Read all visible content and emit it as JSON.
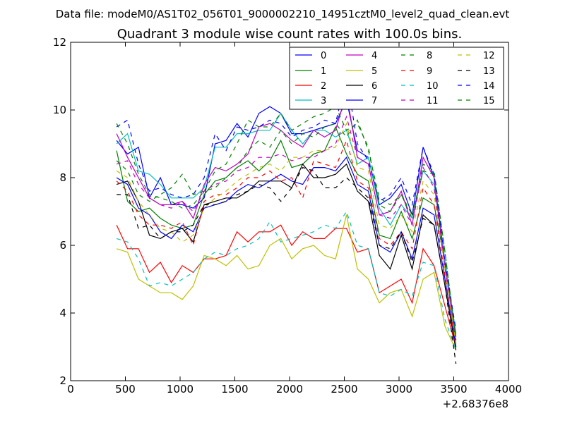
{
  "header": {
    "data_file": "Data file: modeM0/AS1T02_056T01_9000002210_14951cztM0_level2_quad_clean.evt"
  },
  "chart_data": {
    "type": "line",
    "title": "Quadrant 3 module wise count rates with 100.0s bins.",
    "xlabel": "",
    "ylabel": "",
    "x_offset_label": "+2.68376e8",
    "xlim": [
      0,
      4000
    ],
    "ylim": [
      2,
      12
    ],
    "x_ticks": [
      0,
      500,
      1000,
      1500,
      2000,
      2500,
      3000,
      3500,
      4000
    ],
    "y_ticks": [
      2,
      4,
      6,
      8,
      10,
      12
    ],
    "grid": false,
    "legend_placement": "top-right",
    "x": [
      420,
      520,
      620,
      720,
      820,
      920,
      1020,
      1120,
      1220,
      1320,
      1420,
      1520,
      1620,
      1720,
      1820,
      1920,
      2020,
      2120,
      2220,
      2320,
      2420,
      2520,
      2620,
      2720,
      2820,
      2920,
      3020,
      3120,
      3220,
      3320,
      3420,
      3520
    ],
    "series": [
      {
        "name": "0",
        "color": "#0000ff",
        "dash": false,
        "values": [
          9.1,
          8.7,
          8.9,
          7.4,
          8.0,
          7.2,
          7.2,
          7.1,
          7.4,
          9.0,
          9.1,
          9.6,
          9.2,
          9.9,
          10.1,
          9.9,
          9.3,
          9.3,
          9.4,
          9.5,
          9.6,
          10.3,
          8.8,
          8.6,
          7.2,
          7.4,
          7.8,
          6.9,
          8.9,
          8.0,
          5.5,
          3.4
        ]
      },
      {
        "name": "1",
        "color": "#008000",
        "dash": false,
        "values": [
          8.8,
          7.3,
          7.0,
          7.1,
          6.8,
          6.6,
          6.5,
          6.6,
          7.5,
          7.9,
          8.0,
          8.3,
          8.5,
          8.2,
          8.5,
          9.1,
          8.3,
          8.4,
          8.7,
          8.8,
          9.5,
          8.7,
          8.1,
          7.9,
          6.3,
          6.2,
          7.0,
          6.2,
          7.4,
          7.2,
          5.5,
          3.1
        ]
      },
      {
        "name": "2",
        "color": "#ff0000",
        "dash": false,
        "values": [
          6.6,
          5.9,
          5.9,
          5.2,
          5.5,
          4.9,
          5.4,
          5.2,
          5.6,
          5.6,
          5.7,
          6.4,
          6.1,
          6.4,
          6.4,
          6.6,
          6.0,
          6.4,
          6.2,
          6.2,
          6.5,
          6.5,
          5.8,
          5.9,
          4.6,
          4.8,
          5.0,
          4.3,
          5.9,
          5.4,
          4.2,
          3.0
        ]
      },
      {
        "name": "3",
        "color": "#00bfbf",
        "dash": false,
        "values": [
          9.0,
          9.3,
          8.2,
          8.1,
          7.8,
          7.4,
          7.4,
          7.4,
          7.7,
          8.9,
          8.9,
          9.3,
          9.3,
          9.4,
          9.4,
          9.9,
          9.4,
          9.0,
          9.4,
          9.4,
          9.2,
          9.4,
          8.4,
          8.6,
          7.1,
          6.6,
          7.2,
          6.8,
          8.2,
          7.8,
          5.5,
          3.4
        ]
      },
      {
        "name": "4",
        "color": "#bf00bf",
        "dash": false,
        "values": [
          9.3,
          8.6,
          8.0,
          7.4,
          7.2,
          7.2,
          7.3,
          6.8,
          7.8,
          8.3,
          8.2,
          8.4,
          8.7,
          9.5,
          9.6,
          9.4,
          9.1,
          8.9,
          9.4,
          9.2,
          9.4,
          10.5,
          8.6,
          8.4,
          6.9,
          7.0,
          7.6,
          6.6,
          8.6,
          8.0,
          5.3,
          3.3
        ]
      },
      {
        "name": "5",
        "color": "#bfbf00",
        "dash": false,
        "values": [
          5.9,
          5.8,
          5.0,
          4.8,
          4.6,
          4.6,
          4.4,
          4.8,
          5.7,
          5.6,
          5.4,
          5.7,
          5.3,
          5.4,
          6.0,
          6.2,
          5.6,
          5.9,
          6.0,
          5.7,
          5.6,
          6.9,
          5.3,
          5.0,
          4.3,
          4.6,
          4.7,
          3.9,
          5.0,
          5.2,
          3.6,
          2.9
        ]
      },
      {
        "name": "6",
        "color": "#000000",
        "dash": false,
        "values": [
          7.8,
          7.9,
          7.3,
          6.3,
          6.2,
          6.4,
          6.5,
          6.1,
          7.2,
          7.3,
          7.4,
          7.4,
          7.6,
          7.9,
          7.9,
          7.9,
          7.7,
          8.4,
          8.0,
          8.0,
          8.1,
          8.4,
          7.6,
          7.3,
          5.7,
          5.3,
          6.3,
          5.3,
          6.9,
          6.6,
          4.8,
          2.9
        ]
      },
      {
        "name": "7",
        "color": "#0000ff",
        "dash": false,
        "values": [
          8.0,
          7.8,
          7.1,
          6.9,
          6.4,
          6.2,
          6.6,
          6.4,
          7.1,
          7.2,
          7.3,
          7.6,
          7.8,
          7.7,
          7.9,
          8.1,
          7.9,
          7.8,
          8.3,
          8.3,
          8.2,
          8.6,
          7.8,
          7.6,
          6.0,
          5.8,
          6.4,
          5.6,
          7.1,
          6.9,
          5.0,
          3.0
        ]
      },
      {
        "name": "8",
        "color": "#008000",
        "dash": true,
        "values": [
          8.5,
          8.2,
          7.5,
          7.3,
          7.5,
          7.7,
          8.1,
          7.5,
          7.6,
          7.7,
          8.0,
          8.3,
          8.8,
          9.1,
          8.9,
          9.4,
          9.0,
          9.3,
          9.2,
          9.5,
          9.6,
          9.2,
          9.7,
          8.8,
          7.4,
          7.2,
          7.5,
          6.9,
          8.2,
          8.1,
          5.8,
          3.2
        ]
      },
      {
        "name": "9",
        "color": "#ff0000",
        "dash": true,
        "values": [
          7.9,
          7.6,
          6.9,
          6.6,
          6.6,
          6.5,
          6.7,
          6.0,
          7.3,
          7.5,
          7.5,
          7.7,
          8.0,
          8.0,
          8.2,
          7.9,
          8.0,
          7.4,
          8.5,
          8.4,
          8.3,
          9.1,
          7.9,
          7.7,
          6.2,
          6.0,
          6.4,
          5.9,
          7.7,
          7.2,
          5.1,
          3.0
        ]
      },
      {
        "name": "10",
        "color": "#00bfbf",
        "dash": true,
        "values": [
          6.2,
          6.1,
          5.6,
          4.8,
          4.9,
          4.8,
          5.0,
          5.2,
          5.6,
          5.8,
          5.7,
          5.9,
          6.0,
          6.2,
          6.7,
          6.1,
          6.2,
          6.3,
          6.4,
          6.6,
          6.5,
          7.0,
          6.0,
          5.9,
          4.6,
          4.5,
          4.7,
          4.5,
          5.5,
          5.4,
          3.8,
          2.9
        ]
      },
      {
        "name": "11",
        "color": "#bf00bf",
        "dash": true,
        "values": [
          8.4,
          8.5,
          7.8,
          7.4,
          7.2,
          7.1,
          7.3,
          7.0,
          7.6,
          7.8,
          7.9,
          8.2,
          8.3,
          8.6,
          8.6,
          8.7,
          8.5,
          8.6,
          8.6,
          8.8,
          9.0,
          9.8,
          8.6,
          8.4,
          6.9,
          6.8,
          7.2,
          6.6,
          8.3,
          7.7,
          5.4,
          3.2
        ]
      },
      {
        "name": "12",
        "color": "#bfbf00",
        "dash": true,
        "values": [
          8.2,
          8.0,
          7.3,
          6.9,
          6.5,
          6.4,
          6.1,
          6.3,
          7.1,
          7.4,
          7.6,
          7.9,
          8.1,
          8.3,
          8.4,
          8.2,
          8.6,
          8.6,
          8.8,
          8.8,
          8.9,
          9.6,
          8.3,
          8.2,
          6.6,
          6.5,
          6.9,
          6.4,
          7.9,
          7.5,
          5.3,
          3.1
        ]
      },
      {
        "name": "13",
        "color": "#000000",
        "dash": true,
        "values": [
          7.5,
          7.5,
          6.5,
          6.6,
          6.2,
          6.4,
          6.4,
          6.6,
          7.2,
          7.2,
          7.3,
          7.5,
          7.6,
          7.8,
          7.7,
          7.3,
          7.7,
          8.3,
          8.2,
          7.7,
          7.7,
          8.0,
          7.7,
          7.4,
          6.0,
          5.9,
          6.4,
          5.5,
          6.8,
          6.6,
          4.8,
          2.5
        ]
      },
      {
        "name": "14",
        "color": "#0000ff",
        "dash": true,
        "values": [
          9.5,
          9.7,
          8.4,
          7.6,
          7.7,
          7.5,
          7.4,
          7.5,
          8.0,
          9.3,
          8.8,
          9.5,
          9.4,
          9.5,
          9.7,
          9.6,
          9.2,
          9.4,
          9.5,
          9.7,
          9.6,
          11.0,
          9.0,
          8.5,
          7.3,
          7.5,
          8.0,
          7.2,
          8.9,
          8.1,
          5.5,
          3.5
        ]
      },
      {
        "name": "15",
        "color": "#008000",
        "dash": true,
        "values": [
          9.6,
          9.0,
          8.1,
          7.5,
          7.4,
          7.3,
          7.1,
          7.2,
          7.6,
          8.2,
          8.4,
          9.0,
          9.7,
          9.5,
          9.5,
          9.9,
          9.4,
          9.6,
          9.8,
          9.9,
          10.1,
          9.4,
          9.6,
          8.9,
          7.2,
          7.0,
          7.5,
          6.8,
          8.4,
          8.2,
          5.8,
          3.2
        ]
      }
    ]
  }
}
